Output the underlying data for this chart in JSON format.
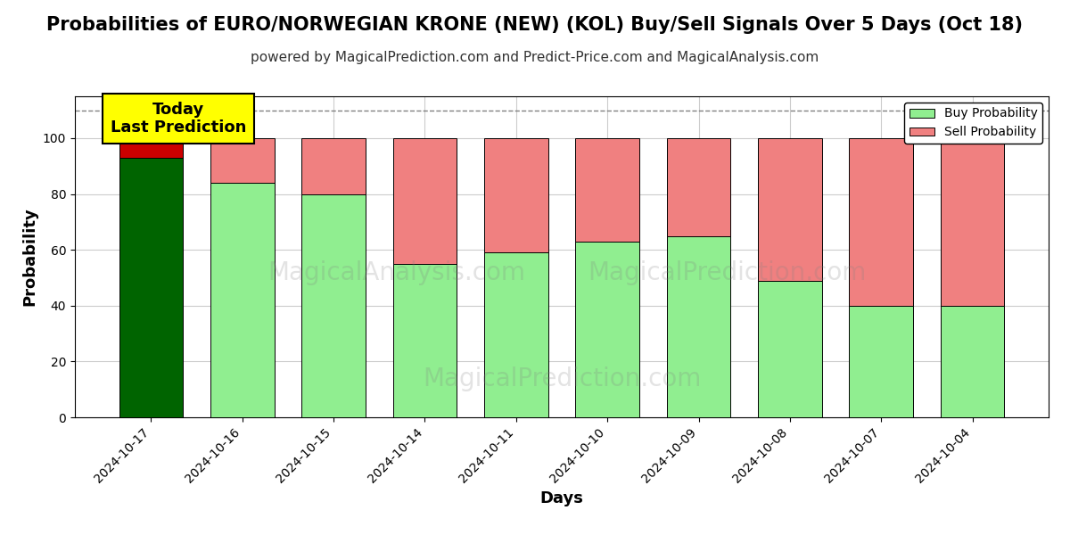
{
  "title": "Probabilities of EURO/NORWEGIAN KRONE (NEW) (KOL) Buy/Sell Signals Over 5 Days (Oct 18)",
  "subtitle": "powered by MagicalPrediction.com and Predict-Price.com and MagicalAnalysis.com",
  "xlabel": "Days",
  "ylabel": "Probability",
  "categories": [
    "2024-10-17",
    "2024-10-16",
    "2024-10-15",
    "2024-10-14",
    "2024-10-11",
    "2024-10-10",
    "2024-10-09",
    "2024-10-08",
    "2024-10-07",
    "2024-10-04"
  ],
  "buy_values": [
    93,
    84,
    80,
    55,
    59,
    63,
    65,
    49,
    40,
    40
  ],
  "sell_values": [
    7,
    16,
    20,
    45,
    41,
    37,
    35,
    51,
    60,
    60
  ],
  "today_bar_buy_color": "#006400",
  "today_bar_sell_color": "#CC0000",
  "regular_buy_color": "#90EE90",
  "regular_sell_color": "#F08080",
  "today_annotation_bg": "#FFFF00",
  "today_annotation_text": "Today\nLast Prediction",
  "legend_buy_label": "Buy Probability",
  "legend_sell_label": "Sell Probability",
  "ylim": [
    0,
    115
  ],
  "dashed_line_y": 110,
  "title_fontsize": 15,
  "subtitle_fontsize": 11,
  "axis_label_fontsize": 13,
  "tick_fontsize": 10,
  "background_color": "#ffffff",
  "grid_color": "#cccccc",
  "bar_edge_color": "#000000",
  "bar_width": 0.7
}
